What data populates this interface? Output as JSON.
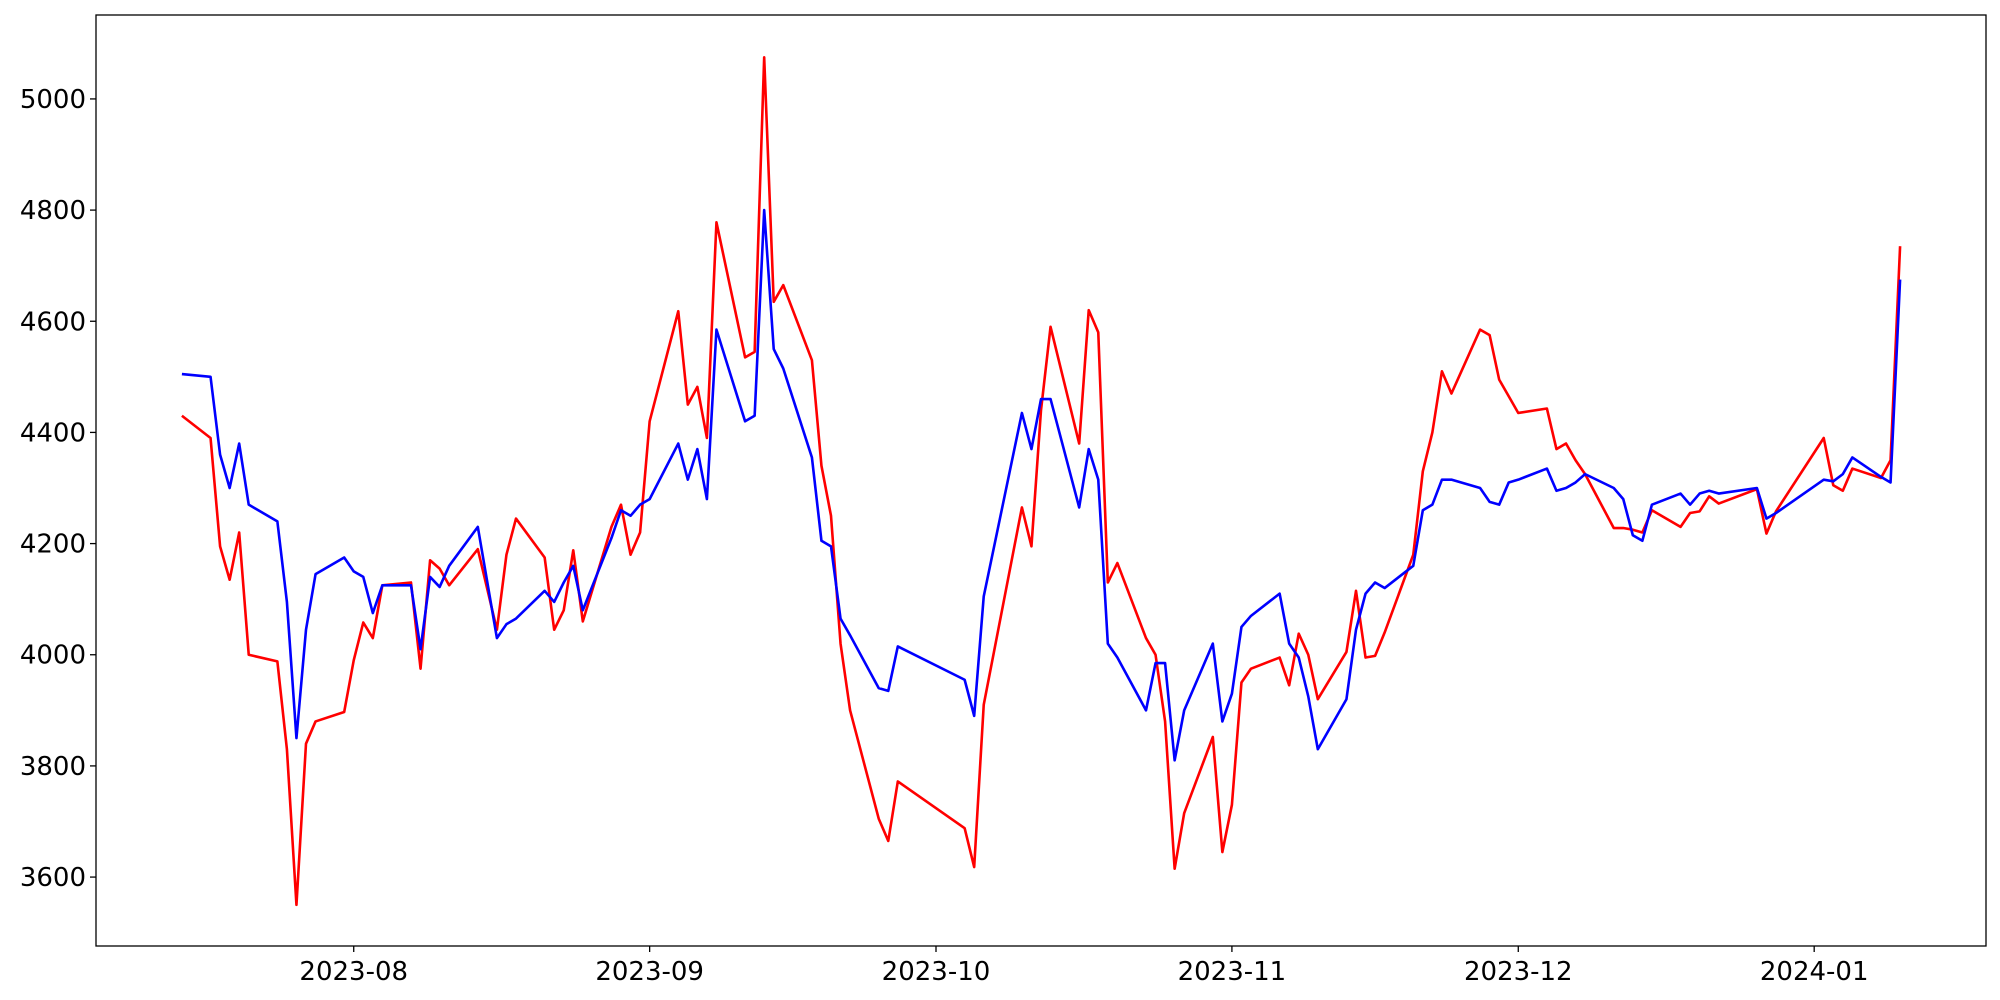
{
  "chart_data": {
    "type": "line",
    "x": [
      "2023-07-14",
      "2023-07-17",
      "2023-07-18",
      "2023-07-19",
      "2023-07-20",
      "2023-07-21",
      "2023-07-24",
      "2023-07-25",
      "2023-07-26",
      "2023-07-27",
      "2023-07-28",
      "2023-07-31",
      "2023-08-01",
      "2023-08-02",
      "2023-08-03",
      "2023-08-04",
      "2023-08-07",
      "2023-08-08",
      "2023-08-09",
      "2023-08-10",
      "2023-08-11",
      "2023-08-14",
      "2023-08-16",
      "2023-08-17",
      "2023-08-18",
      "2023-08-21",
      "2023-08-22",
      "2023-08-23",
      "2023-08-24",
      "2023-08-25",
      "2023-08-28",
      "2023-08-29",
      "2023-08-30",
      "2023-08-31",
      "2023-09-01",
      "2023-09-04",
      "2023-09-05",
      "2023-09-06",
      "2023-09-07",
      "2023-09-08",
      "2023-09-11",
      "2023-09-12",
      "2023-09-13",
      "2023-09-14",
      "2023-09-15",
      "2023-09-18",
      "2023-09-19",
      "2023-09-20",
      "2023-09-21",
      "2023-09-22",
      "2023-09-25",
      "2023-09-26",
      "2023-09-27",
      "2023-10-04",
      "2023-10-05",
      "2023-10-06",
      "2023-10-10",
      "2023-10-11",
      "2023-10-12",
      "2023-10-13",
      "2023-10-16",
      "2023-10-17",
      "2023-10-18",
      "2023-10-19",
      "2023-10-20",
      "2023-10-23",
      "2023-10-24",
      "2023-10-25",
      "2023-10-26",
      "2023-10-27",
      "2023-10-30",
      "2023-10-31",
      "2023-11-01",
      "2023-11-02",
      "2023-11-03",
      "2023-11-06",
      "2023-11-07",
      "2023-11-08",
      "2023-11-09",
      "2023-11-10",
      "2023-11-13",
      "2023-11-14",
      "2023-11-15",
      "2023-11-16",
      "2023-11-17",
      "2023-11-20",
      "2023-11-21",
      "2023-11-22",
      "2023-11-23",
      "2023-11-24",
      "2023-11-27",
      "2023-11-28",
      "2023-11-29",
      "2023-11-30",
      "2023-12-01",
      "2023-12-04",
      "2023-12-05",
      "2023-12-06",
      "2023-12-07",
      "2023-12-08",
      "2023-12-11",
      "2023-12-12",
      "2023-12-13",
      "2023-12-14",
      "2023-12-15",
      "2023-12-18",
      "2023-12-19",
      "2023-12-20",
      "2023-12-21",
      "2023-12-22",
      "2023-12-26",
      "2023-12-27",
      "2023-12-28",
      "2024-01-02",
      "2024-01-03",
      "2024-01-04",
      "2024-01-05",
      "2024-01-08",
      "2024-01-09",
      "2024-01-10"
    ],
    "series": [
      {
        "color": "#ff0000",
        "values": [
          4430,
          4390,
          4195,
          4135,
          4220,
          4000,
          3988,
          3830,
          3550,
          3840,
          3880,
          3897,
          3990,
          4058,
          4030,
          4125,
          4130,
          3975,
          4170,
          4155,
          4125,
          4190,
          4045,
          4180,
          4245,
          4175,
          4045,
          4080,
          4188,
          4060,
          4230,
          4270,
          4180,
          4220,
          4420,
          4618,
          4450,
          4482,
          4390,
          4778,
          4535,
          4545,
          5075,
          4635,
          4665,
          4530,
          4340,
          4250,
          4020,
          3900,
          3705,
          3665,
          3772,
          3688,
          3618,
          3910,
          4265,
          4195,
          4440,
          4590,
          4380,
          4620,
          4580,
          4130,
          4165,
          4030,
          4000,
          3880,
          3615,
          3715,
          3852,
          3645,
          3730,
          3950,
          3975,
          3995,
          3945,
          4038,
          4000,
          3920,
          4005,
          4115,
          3995,
          3998,
          4040,
          4180,
          4330,
          4400,
          4510,
          4470,
          4585,
          4575,
          4495,
          4465,
          4435,
          4443,
          4370,
          4380,
          4350,
          4325,
          4228,
          4228,
          4225,
          4220,
          4260,
          4230,
          4255,
          4258,
          4285,
          4272,
          4298,
          4218,
          4258,
          4390,
          4305,
          4295,
          4335,
          4318,
          4350,
          4735
        ]
      },
      {
        "color": "#0000ff",
        "values": [
          4505,
          4500,
          4360,
          4300,
          4380,
          4270,
          4240,
          4095,
          3850,
          4045,
          4145,
          4175,
          4150,
          4140,
          4075,
          4125,
          4125,
          4010,
          4140,
          4122,
          4160,
          4230,
          4030,
          4055,
          4065,
          4115,
          4095,
          4130,
          4160,
          4080,
          4210,
          4260,
          4250,
          4270,
          4280,
          4380,
          4315,
          4370,
          4280,
          4585,
          4420,
          4430,
          4800,
          4550,
          4515,
          4355,
          4205,
          4195,
          4065,
          4035,
          3940,
          3935,
          4015,
          3955,
          3890,
          4105,
          4435,
          4370,
          4460,
          4460,
          4265,
          4370,
          4315,
          4020,
          3995,
          3900,
          3985,
          3985,
          3810,
          3900,
          4020,
          3880,
          3930,
          4050,
          4070,
          4110,
          4020,
          3995,
          3925,
          3830,
          3920,
          4045,
          4110,
          4130,
          4120,
          4160,
          4260,
          4270,
          4315,
          4315,
          4300,
          4275,
          4270,
          4310,
          4315,
          4335,
          4295,
          4300,
          4310,
          4325,
          4300,
          4280,
          4215,
          4205,
          4270,
          4290,
          4270,
          4290,
          4295,
          4290,
          4300,
          4245,
          4255,
          4315,
          4312,
          4325,
          4355,
          4320,
          4310,
          4675
        ]
      }
    ],
    "xlim": [
      "2023-07-05",
      "2024-01-19"
    ],
    "xticks": [
      "2023-08",
      "2023-09",
      "2023-10",
      "2023-11",
      "2023-12",
      "2024-01"
    ],
    "ylim": [
      3476,
      5151
    ],
    "yticks": [
      3600,
      3800,
      4000,
      4200,
      4400,
      4600,
      4800,
      5000
    ],
    "grid": false
  }
}
